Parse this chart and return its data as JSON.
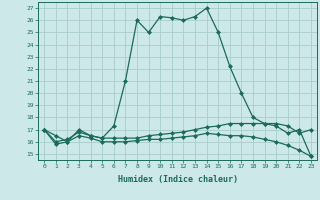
{
  "xlabel": "Humidex (Indice chaleur)",
  "ylabel": "",
  "bg_color": "#cde8e8",
  "grid_color": "#aacccc",
  "line_color": "#1a6b5a",
  "xlim": [
    -0.5,
    23.5
  ],
  "ylim": [
    14.5,
    27.5
  ],
  "xticks": [
    0,
    1,
    2,
    3,
    4,
    5,
    6,
    7,
    8,
    9,
    10,
    11,
    12,
    13,
    14,
    15,
    16,
    17,
    18,
    19,
    20,
    21,
    22,
    23
  ],
  "yticks": [
    15,
    16,
    17,
    18,
    19,
    20,
    21,
    22,
    23,
    24,
    25,
    26,
    27
  ],
  "line1_x": [
    0,
    1,
    2,
    3,
    4,
    5,
    6,
    7,
    8,
    9,
    10,
    11,
    12,
    13,
    14,
    15,
    16,
    17,
    18,
    19,
    20,
    21,
    22,
    23
  ],
  "line1_y": [
    17.0,
    16.5,
    16.0,
    17.0,
    16.5,
    16.3,
    17.3,
    21.0,
    26.0,
    25.0,
    26.3,
    26.2,
    26.0,
    26.3,
    27.0,
    25.0,
    22.2,
    20.0,
    18.0,
    17.5,
    17.5,
    17.3,
    16.7,
    17.0
  ],
  "line2_x": [
    0,
    1,
    2,
    3,
    4,
    5,
    6,
    7,
    8,
    9,
    10,
    11,
    12,
    13,
    14,
    15,
    16,
    17,
    18,
    19,
    20,
    21,
    22,
    23
  ],
  "line2_y": [
    17.0,
    16.0,
    16.2,
    16.8,
    16.5,
    16.3,
    16.3,
    16.3,
    16.3,
    16.5,
    16.6,
    16.7,
    16.8,
    17.0,
    17.2,
    17.3,
    17.5,
    17.5,
    17.5,
    17.5,
    17.3,
    16.7,
    17.0,
    14.8
  ],
  "line3_x": [
    0,
    1,
    2,
    3,
    4,
    5,
    6,
    7,
    8,
    9,
    10,
    11,
    12,
    13,
    14,
    15,
    16,
    17,
    18,
    19,
    20,
    21,
    22,
    23
  ],
  "line3_y": [
    17.0,
    15.8,
    16.0,
    16.5,
    16.3,
    16.0,
    16.0,
    16.0,
    16.1,
    16.2,
    16.2,
    16.3,
    16.4,
    16.5,
    16.7,
    16.6,
    16.5,
    16.5,
    16.4,
    16.2,
    16.0,
    15.7,
    15.3,
    14.8
  ]
}
